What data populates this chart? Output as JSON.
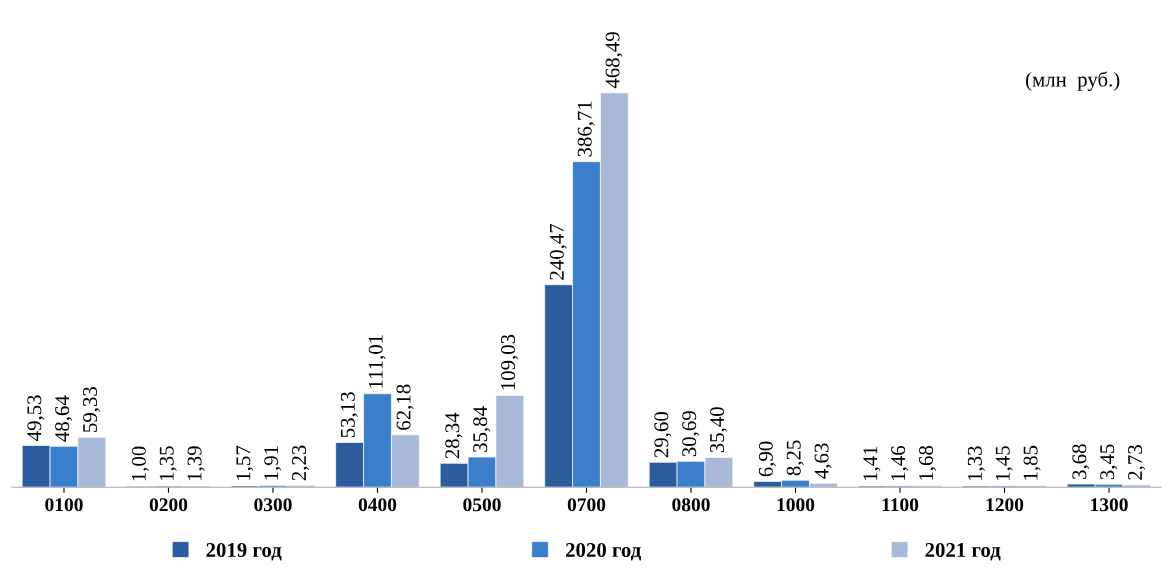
{
  "chart_data": {
    "type": "bar",
    "categories": [
      "0100",
      "0200",
      "0300",
      "0400",
      "0500",
      "0700",
      "0800",
      "1000",
      "1100",
      "1200",
      "1300"
    ],
    "series": [
      {
        "name": "2019 год",
        "color": "#2b5c9e",
        "values": [
          49.53,
          1.0,
          1.57,
          53.13,
          28.34,
          240.47,
          29.6,
          6.9,
          1.41,
          1.33,
          3.68
        ],
        "value_labels": [
          "49,53",
          "1,00",
          "1,57",
          "53,13",
          "28,34",
          "240,47",
          "29,60",
          "6,90",
          "1,41",
          "1,33",
          "3,68"
        ]
      },
      {
        "name": "2020 год",
        "color": "#3b7fcc",
        "values": [
          48.64,
          1.35,
          1.91,
          111.01,
          35.84,
          386.71,
          30.69,
          8.25,
          1.46,
          1.45,
          3.45
        ],
        "value_labels": [
          "48,64",
          "1,35",
          "1,91",
          "111,01",
          "35,84",
          "386,71",
          "30,69",
          "8,25",
          "1,46",
          "1,45",
          "3,45"
        ]
      },
      {
        "name": "2021 год",
        "color": "#a8b8d8",
        "values": [
          59.33,
          1.39,
          2.23,
          62.18,
          109.03,
          468.49,
          35.4,
          4.63,
          1.68,
          1.85,
          2.73
        ],
        "value_labels": [
          "59,33",
          "1,39",
          "2,23",
          "62,18",
          "109,03",
          "468,49",
          "35,40",
          "4,63",
          "1,68",
          "1,85",
          "2,73"
        ]
      }
    ],
    "annotations": [
      "(млн  руб.)"
    ],
    "legend": "bottom",
    "grid": false
  }
}
